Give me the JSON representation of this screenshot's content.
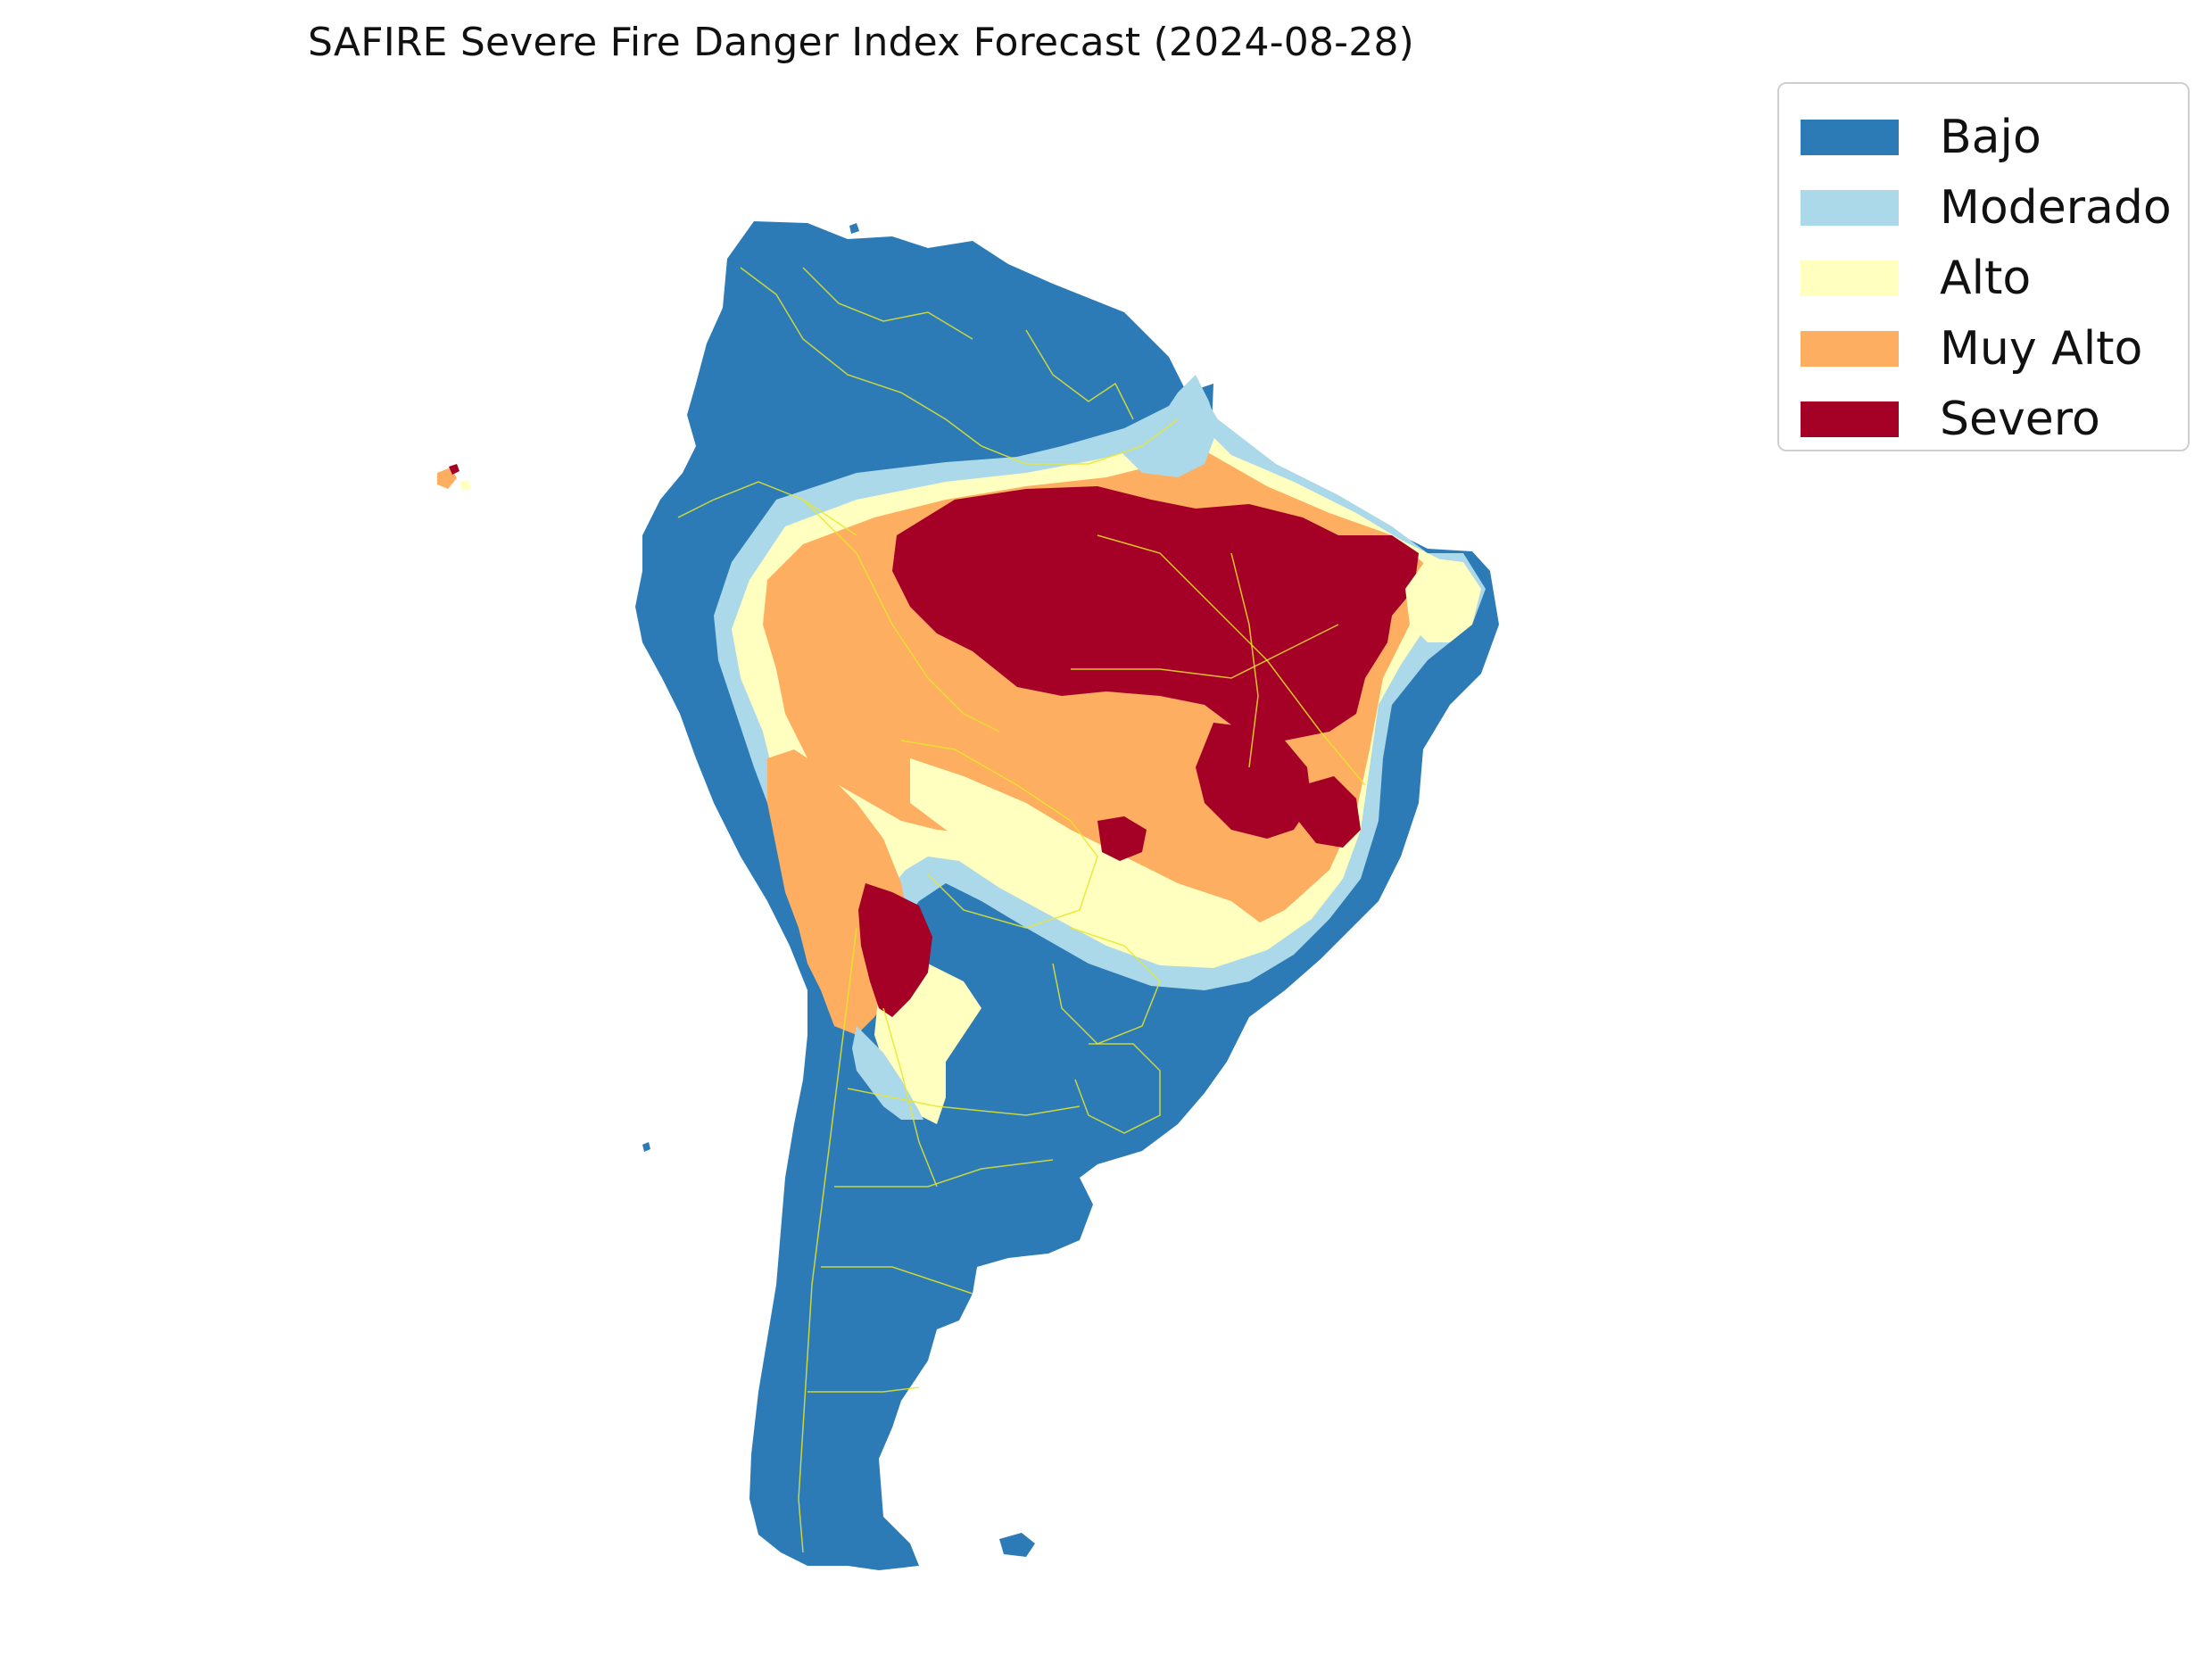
{
  "title": "SAFIRE Severe Fire Danger Index Forecast (2024-08-28)",
  "legend": {
    "entries": [
      {
        "label": "Bajo",
        "color": "#2c7bb6"
      },
      {
        "label": "Moderado",
        "color": "#abd9e9"
      },
      {
        "label": "Alto",
        "color": "#ffffbf"
      },
      {
        "label": "Muy Alto",
        "color": "#fdae61"
      },
      {
        "label": "Severo",
        "color": "#a50026"
      }
    ]
  },
  "map": {
    "region": "South America",
    "border_color": "#e6e62a",
    "categories": [
      "Bajo",
      "Moderado",
      "Alto",
      "Muy Alto",
      "Severo"
    ]
  }
}
